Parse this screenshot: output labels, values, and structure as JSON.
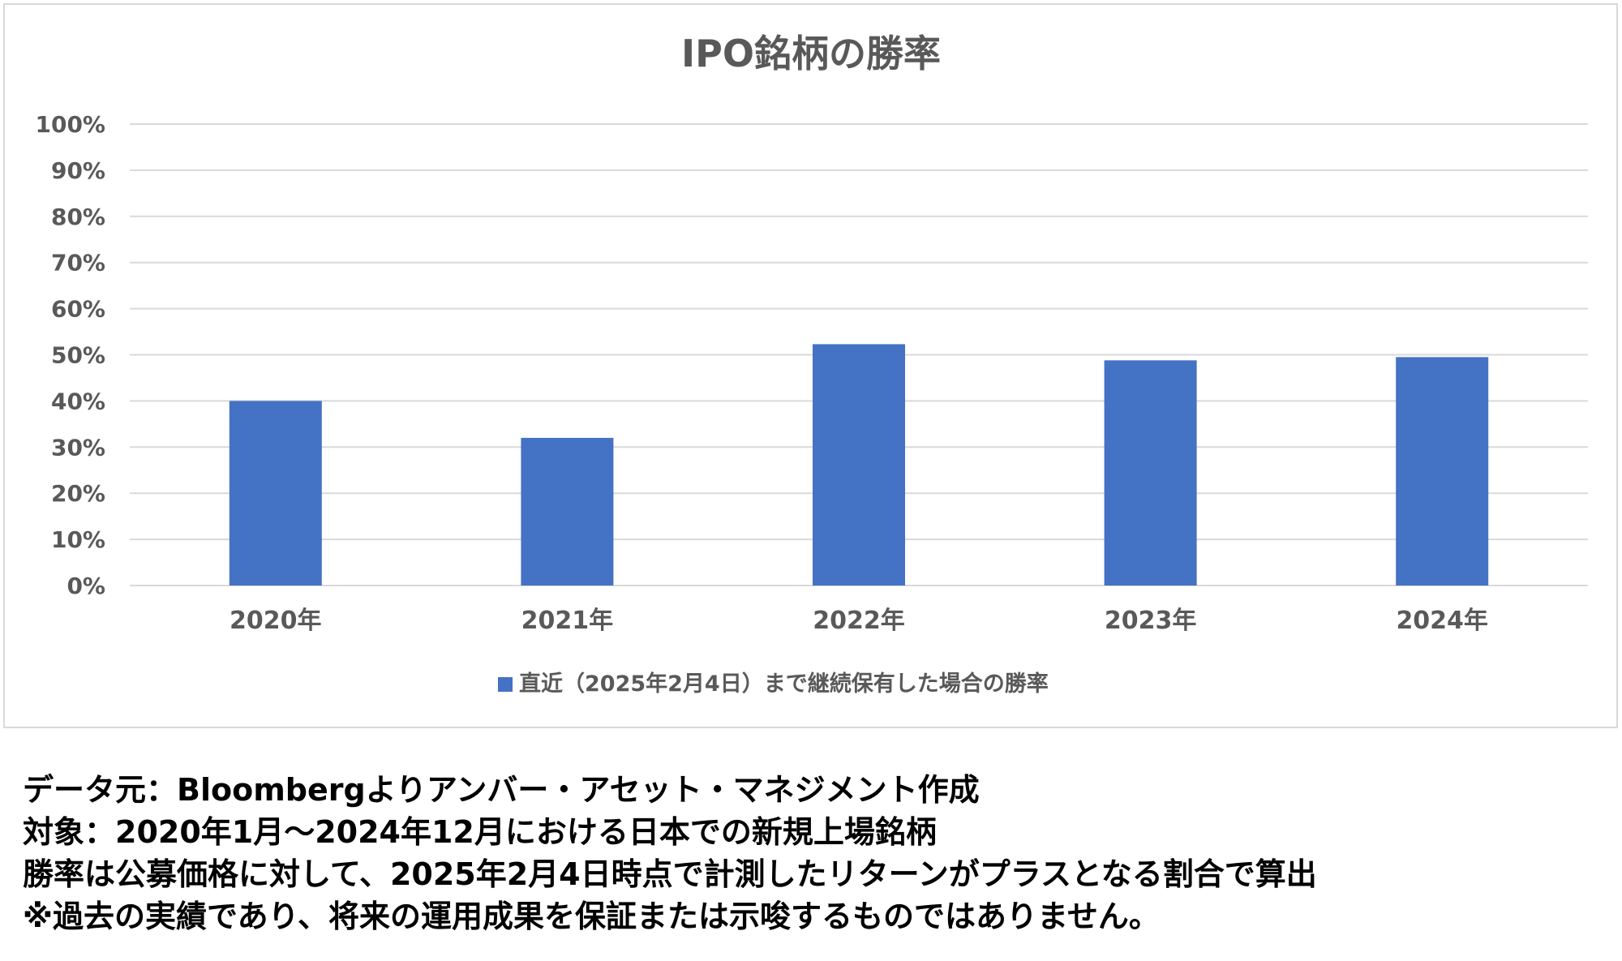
{
  "chart_data": {
    "type": "bar",
    "title": "IPO銘柄の勝率",
    "categories": [
      "2020年",
      "2021年",
      "2022年",
      "2023年",
      "2024年"
    ],
    "series": [
      {
        "name": "直近（2025年2月4日）まで継続保有した場合の勝率",
        "values": [
          40,
          32,
          52.3,
          48.8,
          49.5
        ]
      }
    ],
    "yticks": [
      "0%",
      "10%",
      "20%",
      "30%",
      "40%",
      "50%",
      "60%",
      "70%",
      "80%",
      "90%",
      "100%"
    ],
    "ylim": [
      0,
      100
    ],
    "grid": true,
    "legend_position": "bottom",
    "bar_color": "#4472c4",
    "gridline_color": "#d9d9d9"
  },
  "notes": [
    "データ元：Bloombergよりアンバー・アセット・マネジメント作成",
    "対象：2020年1月～2024年12月における日本での新規上場銘柄",
    "勝率は公募価格に対して、2025年2月4日時点で計測したリターンがプラスとなる割合で算出",
    "※過去の実績であり、将来の運用成果を保証または示唆するものではありません。"
  ]
}
